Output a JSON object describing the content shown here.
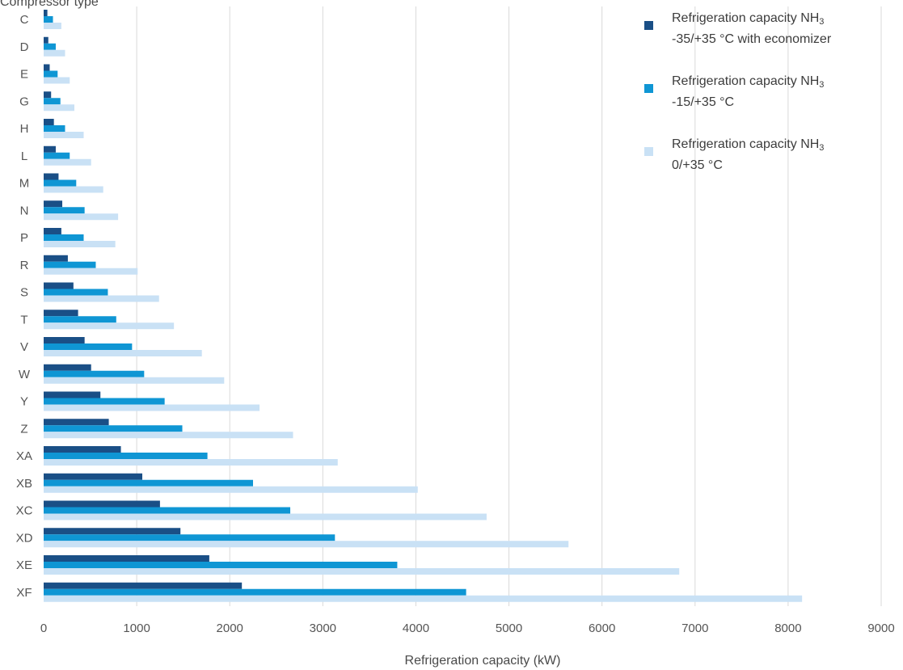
{
  "chart_data": {
    "type": "bar",
    "orientation": "horizontal",
    "ylabel": "Compressor type",
    "xlabel": "Refrigeration capacity (kW)",
    "xlim": [
      0,
      9000
    ],
    "xticks": [
      0,
      1000,
      2000,
      3000,
      4000,
      5000,
      6000,
      7000,
      8000,
      9000
    ],
    "grid": "vertical",
    "legend_position": "top-right",
    "categories": [
      "C",
      "D",
      "E",
      "G",
      "H",
      "L",
      "M",
      "N",
      "P",
      "R",
      "S",
      "T",
      "V",
      "W",
      "Y",
      "Z",
      "XA",
      "XB",
      "XC",
      "XD",
      "XE",
      "XF"
    ],
    "series": [
      {
        "name": "Refrigeration capacity NH3 -35/+35 °C with economizer",
        "legend_line1": "Refrigeration capacity NH",
        "legend_sub": "3",
        "legend_line2": "-35/+35 °C with economizer",
        "color": "#1a4f86",
        "values": [
          40,
          50,
          65,
          80,
          110,
          130,
          160,
          200,
          190,
          260,
          320,
          370,
          440,
          510,
          610,
          700,
          830,
          1060,
          1250,
          1470,
          1780,
          2130
        ]
      },
      {
        "name": "Refrigeration capacity NH3 -15/+35 °C",
        "legend_line1": "Refrigeration capacity NH",
        "legend_sub": "3",
        "legend_line2": "-15/+35 °C",
        "color": "#0f96d4",
        "values": [
          100,
          130,
          150,
          180,
          230,
          280,
          350,
          440,
          430,
          560,
          690,
          780,
          950,
          1080,
          1300,
          1490,
          1760,
          2250,
          2650,
          3130,
          3800,
          4540
        ]
      },
      {
        "name": "Refrigeration capacity NH3 0/+35 °C",
        "legend_line1": "Refrigeration capacity NH",
        "legend_sub": "3",
        "legend_line2": "0/+35 °C",
        "color": "#c9e1f5",
        "values": [
          190,
          230,
          280,
          330,
          430,
          510,
          640,
          800,
          770,
          1010,
          1240,
          1400,
          1700,
          1940,
          2320,
          2680,
          3160,
          4020,
          4760,
          5640,
          6830,
          8150
        ]
      }
    ]
  }
}
